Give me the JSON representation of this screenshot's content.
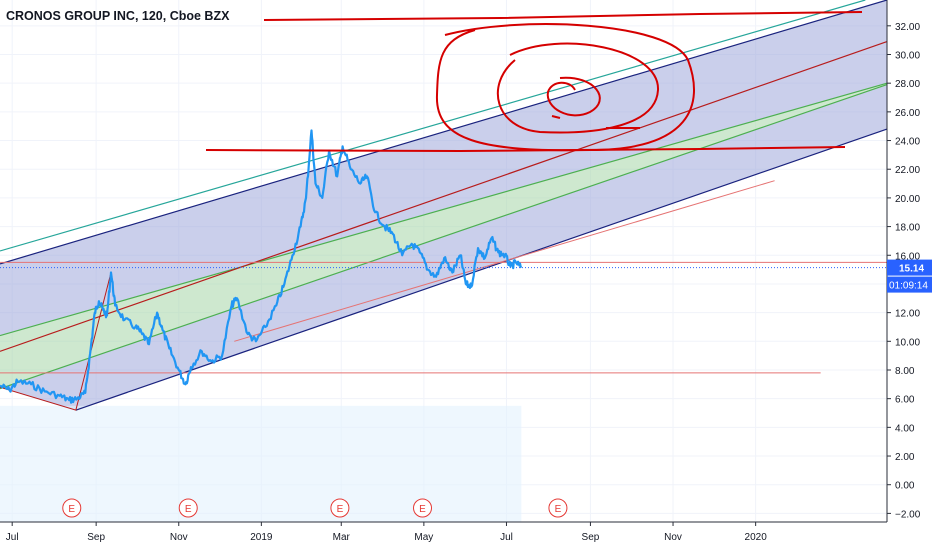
{
  "header": {
    "title": "CRONOS GROUP INC, 120, Cboe BZX"
  },
  "colors": {
    "price_line": "#2196f3",
    "channel_outer": "#1a237e",
    "channel_green": "#4caf50",
    "channel_mid": "#b71c1c",
    "outer_teal": "#26a69a",
    "band_purple": "#9fa8da",
    "band_green": "#a5d6a7",
    "hline": "#e57373",
    "marker": "#e53935",
    "drawing": "#d50000",
    "price_badge": "#2962ff",
    "price_range_fill": "#e3f2fd"
  },
  "price_badge": {
    "value": "15.14",
    "countdown": "01:09:14"
  },
  "earnings_marker": "E",
  "chart_data": {
    "type": "line",
    "series": [
      {
        "name": "",
        "points": [
          [
            "2018-06-22",
            6.9
          ],
          [
            "2018-06-29",
            6.6
          ],
          [
            "2018-07-05",
            7.2
          ],
          [
            "2018-07-15",
            7.0
          ],
          [
            "2018-07-25",
            6.5
          ],
          [
            "2018-08-05",
            6.2
          ],
          [
            "2018-08-12",
            5.9
          ],
          [
            "2018-08-18",
            6.0
          ],
          [
            "2018-08-24",
            6.4
          ],
          [
            "2018-08-28",
            9.5
          ],
          [
            "2018-08-31",
            12.0
          ],
          [
            "2018-09-03",
            12.8
          ],
          [
            "2018-09-06",
            12.2
          ],
          [
            "2018-09-09",
            11.8
          ],
          [
            "2018-09-12",
            14.8
          ],
          [
            "2018-09-15",
            12.5
          ],
          [
            "2018-09-22",
            11.5
          ],
          [
            "2018-09-30",
            11.0
          ],
          [
            "2018-10-05",
            10.5
          ],
          [
            "2018-10-10",
            9.8
          ],
          [
            "2018-10-16",
            12.0
          ],
          [
            "2018-10-20",
            10.8
          ],
          [
            "2018-10-25",
            9.5
          ],
          [
            "2018-11-01",
            8.0
          ],
          [
            "2018-11-06",
            7.0
          ],
          [
            "2018-11-10",
            8.2
          ],
          [
            "2018-11-18",
            9.3
          ],
          [
            "2018-11-25",
            8.6
          ],
          [
            "2018-12-03",
            9.0
          ],
          [
            "2018-12-10",
            12.5
          ],
          [
            "2018-12-14",
            13.0
          ],
          [
            "2018-12-22",
            10.5
          ],
          [
            "2018-12-28",
            10.0
          ],
          [
            "2019-01-04",
            11.0
          ],
          [
            "2019-01-12",
            12.5
          ],
          [
            "2019-01-18",
            14.0
          ],
          [
            "2019-01-24",
            16.0
          ],
          [
            "2019-01-30",
            18.0
          ],
          [
            "2019-02-03",
            20.0
          ],
          [
            "2019-02-07",
            24.7
          ],
          [
            "2019-02-10",
            21.0
          ],
          [
            "2019-02-15",
            20.0
          ],
          [
            "2019-02-20",
            23.3
          ],
          [
            "2019-02-26",
            21.5
          ],
          [
            "2019-03-02",
            23.6
          ],
          [
            "2019-03-08",
            22.0
          ],
          [
            "2019-03-15",
            21.0
          ],
          [
            "2019-03-20",
            21.5
          ],
          [
            "2019-03-26",
            19.0
          ],
          [
            "2019-04-02",
            18.0
          ],
          [
            "2019-04-08",
            17.5
          ],
          [
            "2019-04-15",
            16.0
          ],
          [
            "2019-04-22",
            16.8
          ],
          [
            "2019-04-28",
            16.2
          ],
          [
            "2019-05-04",
            15.0
          ],
          [
            "2019-05-10",
            14.5
          ],
          [
            "2019-05-16",
            15.8
          ],
          [
            "2019-05-22",
            14.8
          ],
          [
            "2019-05-28",
            16.0
          ],
          [
            "2019-06-01",
            14.0
          ],
          [
            "2019-06-05",
            13.8
          ],
          [
            "2019-06-10",
            16.5
          ],
          [
            "2019-06-15",
            15.8
          ],
          [
            "2019-06-20",
            17.2
          ],
          [
            "2019-06-25",
            16.2
          ],
          [
            "2019-06-30",
            16.0
          ],
          [
            "2019-07-04",
            15.2
          ],
          [
            "2019-07-08",
            15.5
          ],
          [
            "2019-07-12",
            15.14
          ]
        ]
      }
    ],
    "last_value": 15.14,
    "ylim": [
      -2.6,
      33.8
    ],
    "y_ticks": [
      32,
      30,
      28,
      26,
      24,
      22,
      20,
      18,
      16,
      14,
      12,
      10,
      8,
      6,
      4,
      2,
      0,
      -2
    ],
    "y_tick_labels": [
      "32.00",
      "30.00",
      "28.00",
      "26.00",
      "24.00",
      "22.00",
      "20.00",
      "18.00",
      "16.00",
      "14.00",
      "12.00",
      "10.00",
      "8.00",
      "6.00",
      "4.00",
      "2.00",
      "0.00",
      "−2.00"
    ],
    "x_ticks": [
      {
        "date": "2018-07-01",
        "label": "Jul"
      },
      {
        "date": "2018-09-01",
        "label": "Sep"
      },
      {
        "date": "2018-11-01",
        "label": "Nov"
      },
      {
        "date": "2019-01-01",
        "label": "2019"
      },
      {
        "date": "2019-03-01",
        "label": "Mar"
      },
      {
        "date": "2019-05-01",
        "label": "May"
      },
      {
        "date": "2019-07-01",
        "label": "Jul"
      },
      {
        "date": "2019-09-01",
        "label": "Sep"
      },
      {
        "date": "2019-11-01",
        "label": "Nov"
      },
      {
        "date": "2020-01-01",
        "label": "2020"
      }
    ],
    "x_range": [
      "2018-06-22",
      "2020-04-07"
    ],
    "grid": true,
    "earnings_dates": [
      "2018-08-14",
      "2018-11-08",
      "2019-02-28",
      "2019-04-30",
      "2019-08-08"
    ],
    "pitchfork": {
      "anchors": [
        [
          "2018-08-17",
          5.2
        ],
        [
          "2018-09-12",
          14.8
        ],
        [
          "2018-06-22",
          6.8
        ]
      ],
      "lines": [
        {
          "role": "outer_upper",
          "start": [
            "2018-06-22",
            16.3
          ],
          "end": [
            "2020-03-22",
            33.8
          ]
        },
        {
          "role": "upper",
          "start": [
            "2018-06-22",
            15.4
          ],
          "end": [
            "2020-04-07",
            33.8
          ]
        },
        {
          "role": "upper_inner",
          "start": [
            "2018-06-22",
            10.4
          ],
          "end": [
            "2020-04-07",
            28.0
          ]
        },
        {
          "role": "median",
          "start": [
            "2018-06-22",
            9.3
          ],
          "end": [
            "2020-04-07",
            30.9
          ]
        },
        {
          "role": "lower_inner",
          "start": [
            "2018-06-22",
            6.7
          ],
          "end": [
            "2020-04-07",
            27.9
          ]
        },
        {
          "role": "lower",
          "start": [
            "2018-08-17",
            5.2
          ],
          "end": [
            "2020-04-07",
            24.8
          ]
        }
      ]
    },
    "horizontal_lines": [
      {
        "y": 7.8,
        "from": "2018-06-22",
        "to": "2020-02-18"
      },
      {
        "y": 15.5,
        "from": "2018-06-22",
        "to": "2020-04-07"
      }
    ],
    "trend_lines": [
      {
        "from": [
          "2018-12-12",
          10.0
        ],
        "to": [
          "2020-01-15",
          21.2
        ]
      }
    ]
  }
}
